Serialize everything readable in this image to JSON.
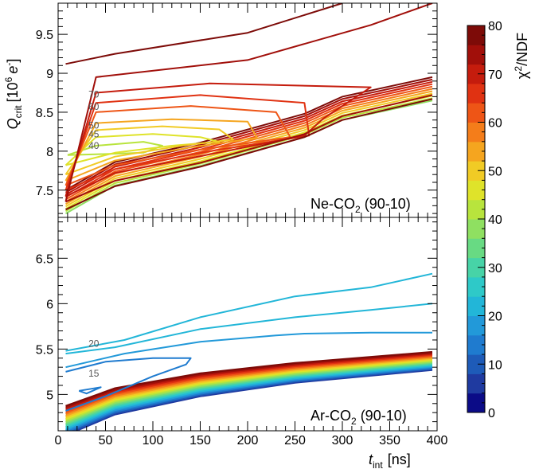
{
  "chart_data": {
    "type": "contour",
    "x_axis": {
      "label_main": "t",
      "label_sub": "int",
      "label_unit": "[ns]",
      "range": [
        0,
        400
      ],
      "ticks": [
        0,
        50,
        100,
        150,
        200,
        250,
        300,
        350,
        400
      ]
    },
    "y_axis": {
      "label_main": "Q",
      "label_sub": "crit",
      "label_unit": "[10",
      "label_exp": "6",
      "label_tail": "e",
      "label_tail_sup": "-",
      "label_close": "]"
    },
    "colorbar": {
      "label_main": "χ",
      "label_sup": "2",
      "label_tail": "/NDF",
      "range": [
        0,
        80
      ],
      "ticks": [
        0,
        10,
        20,
        30,
        40,
        50,
        60,
        70,
        80
      ]
    },
    "panels": [
      {
        "name": "Ne-CO",
        "name_sub": "2",
        "name_tail": " (90-10)",
        "ylim": [
          7.15,
          9.9
        ],
        "yticks": [
          "7.5",
          "8",
          "8.5",
          "9",
          "9.5"
        ],
        "ytick_values": [
          7.5,
          8,
          8.5,
          9,
          9.5
        ],
        "contour_labels": [
          {
            "text": "70",
            "t": 32,
            "q": 8.73
          },
          {
            "text": "60",
            "t": 32,
            "q": 8.57
          },
          {
            "text": "50",
            "t": 32,
            "q": 8.33
          },
          {
            "text": "45",
            "t": 32,
            "q": 8.22
          },
          {
            "text": "40",
            "t": 32,
            "q": 8.07
          }
        ],
        "levels": [
          {
            "chi2": 40,
            "pts": [
              [
                10,
                7.95
              ],
              [
                40,
                8.07
              ],
              [
                90,
                8.12
              ],
              [
                110,
                8.07
              ],
              [
                90,
                7.98
              ],
              [
                40,
                7.96
              ],
              [
                10,
                7.95
              ]
            ]
          },
          {
            "chi2": 45,
            "pts": [
              [
                8,
                7.82
              ],
              [
                40,
                8.18
              ],
              [
                100,
                8.22
              ],
              [
                150,
                8.18
              ],
              [
                170,
                8.12
              ],
              [
                120,
                8.07
              ],
              [
                60,
                7.98
              ],
              [
                8,
                7.82
              ]
            ]
          },
          {
            "chi2": 50,
            "pts": [
              [
                8,
                7.7
              ],
              [
                40,
                8.27
              ],
              [
                110,
                8.32
              ],
              [
                170,
                8.28
              ],
              [
                185,
                8.15
              ],
              [
                130,
                8.07
              ],
              [
                60,
                7.93
              ],
              [
                8,
                7.7
              ]
            ]
          },
          {
            "chi2": 55,
            "pts": [
              [
                8,
                7.62
              ],
              [
                40,
                8.36
              ],
              [
                120,
                8.41
              ],
              [
                200,
                8.38
              ],
              [
                210,
                8.17
              ],
              [
                140,
                8.05
              ],
              [
                60,
                7.88
              ],
              [
                8,
                7.62
              ]
            ]
          },
          {
            "chi2": 60,
            "pts": [
              [
                8,
                7.56
              ],
              [
                40,
                8.5
              ],
              [
                140,
                8.58
              ],
              [
                230,
                8.5
              ],
              [
                245,
                8.18
              ],
              [
                150,
                8.02
              ],
              [
                60,
                7.82
              ],
              [
                8,
                7.56
              ]
            ]
          },
          {
            "chi2": 65,
            "pts": [
              [
                8,
                7.5
              ],
              [
                40,
                8.62
              ],
              [
                150,
                8.72
              ],
              [
                260,
                8.62
              ],
              [
                265,
                8.2
              ],
              [
                160,
                8.0
              ],
              [
                60,
                7.77
              ],
              [
                8,
                7.5
              ]
            ]
          },
          {
            "chi2": 70,
            "pts": [
              [
                8,
                7.42
              ],
              [
                40,
                8.75
              ],
              [
                160,
                8.87
              ],
              [
                330,
                8.82
              ],
              [
                280,
                8.42
              ],
              [
                260,
                8.2
              ],
              [
                160,
                7.96
              ],
              [
                60,
                7.72
              ],
              [
                8,
                7.42
              ]
            ]
          },
          {
            "chi2": 75,
            "pts": [
              [
                8,
                7.35
              ],
              [
                40,
                8.95
              ],
              [
                200,
                9.17
              ],
              [
                330,
                9.62
              ],
              [
                395,
                9.9
              ]
            ]
          },
          {
            "chi2": 75,
            "pts": [
              [
                8,
                7.35
              ],
              [
                60,
                7.62
              ],
              [
                150,
                7.85
              ],
              [
                260,
                8.22
              ],
              [
                300,
                8.45
              ],
              [
                395,
                8.72
              ]
            ]
          },
          {
            "chi2": 80,
            "pts": [
              [
                8,
                9.12
              ],
              [
                60,
                9.25
              ],
              [
                200,
                9.52
              ],
              [
                300,
                9.9
              ]
            ]
          },
          {
            "chi2": 80,
            "pts": [
              [
                8,
                7.25
              ],
              [
                60,
                7.55
              ],
              [
                150,
                7.8
              ],
              [
                260,
                8.18
              ],
              [
                300,
                8.4
              ],
              [
                395,
                8.67
              ]
            ]
          }
        ]
      },
      {
        "name": "Ar-CO",
        "name_sub": "2",
        "name_tail": " (90-10)",
        "ylim": [
          4.6,
          6.95
        ],
        "yticks": [
          "5",
          "5.5",
          "6",
          "6.5"
        ],
        "ytick_values": [
          5,
          5.5,
          6,
          6.5
        ],
        "contour_labels": [
          {
            "text": "20",
            "t": 32,
            "q": 5.56
          },
          {
            "text": "15",
            "t": 32,
            "q": 5.23
          }
        ],
        "levels": [
          {
            "chi2": 12,
            "pts": [
              [
                22,
                5.04
              ],
              [
                45,
                5.08
              ],
              [
                30,
                5.01
              ],
              [
                22,
                5.04
              ]
            ]
          },
          {
            "chi2": 15,
            "pts": [
              [
                8,
                5.25
              ],
              [
                50,
                5.36
              ],
              [
                100,
                5.4
              ],
              [
                140,
                5.4
              ],
              [
                135,
                5.33
              ],
              [
                100,
                5.2
              ],
              [
                50,
                4.98
              ],
              [
                8,
                4.82
              ]
            ]
          },
          {
            "chi2": 18,
            "pts": [
              [
                8,
                5.3
              ],
              [
                70,
                5.45
              ],
              [
                150,
                5.58
              ],
              [
                230,
                5.65
              ],
              [
                260,
                5.67
              ],
              [
                330,
                5.68
              ],
              [
                395,
                5.68
              ]
            ]
          },
          {
            "chi2": 20,
            "pts": [
              [
                8,
                5.45
              ],
              [
                60,
                5.52
              ],
              [
                150,
                5.72
              ],
              [
                250,
                5.85
              ],
              [
                330,
                5.93
              ],
              [
                395,
                6.0
              ]
            ]
          },
          {
            "chi2": 22,
            "pts": [
              [
                8,
                5.48
              ],
              [
                70,
                5.6
              ],
              [
                150,
                5.85
              ],
              [
                250,
                6.08
              ],
              [
                330,
                6.18
              ],
              [
                395,
                6.33
              ]
            ]
          }
        ]
      }
    ]
  },
  "colors": {
    "scale": [
      "#0b0b87",
      "#1f3aa0",
      "#1e5bb8",
      "#1f7bcf",
      "#2299d9",
      "#22b6d8",
      "#2ec9c8",
      "#47d3a7",
      "#68da83",
      "#8fe061",
      "#b8e43d",
      "#dfe32a",
      "#f1cb25",
      "#f5a51f",
      "#f47d1a",
      "#ee5516",
      "#e03212",
      "#c51c0d",
      "#a10f0a",
      "#7d0b08"
    ]
  }
}
